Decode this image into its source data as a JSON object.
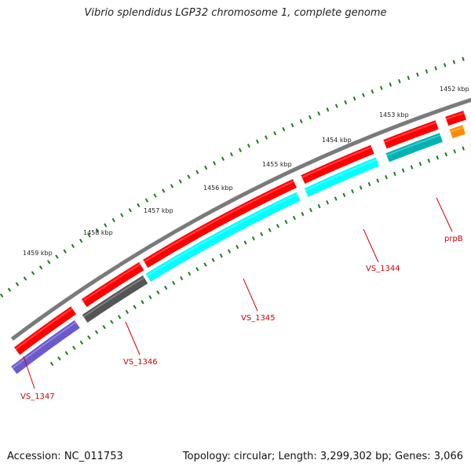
{
  "title": "Vibrio splendidus LGP32 chromosome 1, complete genome",
  "accession": "Accession: NC_011753",
  "topology": "Topology: circular; Length: 3,299,302 bp; Genes: 3,066",
  "colors": {
    "backbone": "#7a7a7a",
    "tick": "#1f7a1f",
    "label": "#d00000",
    "gene_red": "#ff0000",
    "gene_cyan": "#00ffff",
    "gene_teal": "#00b3b3",
    "gene_gray": "#555555",
    "gene_purple": "#6a5acd",
    "gene_orange": "#ff8c00"
  },
  "scale_labels": [
    "1452 kbp",
    "1453 kbp",
    "1454 kbp",
    "1455 kbp",
    "1456 kbp",
    "1457 kbp",
    "1458 kbp",
    "1459 kbp"
  ],
  "gene_labels": [
    "VS_1347",
    "VS_1346",
    "VS_1345",
    "VS_1344",
    "prpB"
  ]
}
